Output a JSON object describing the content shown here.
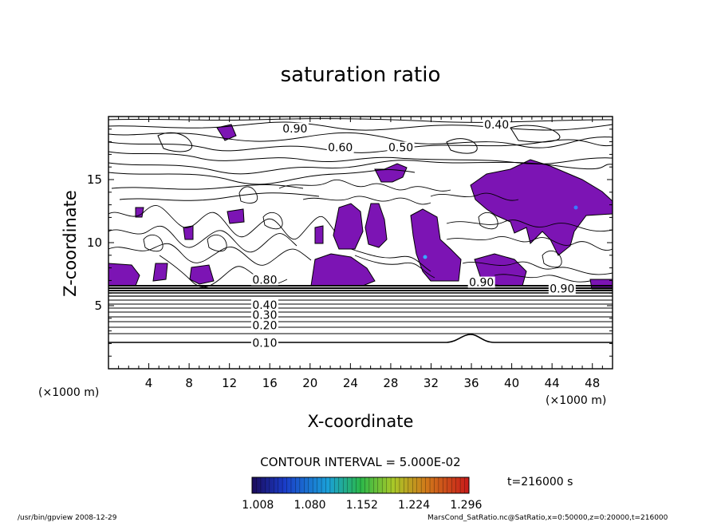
{
  "chart_data": {
    "type": "heatmap",
    "title": "saturation ratio",
    "xlabel": "X-coordinate",
    "ylabel": "Z-coordinate",
    "x_unit": "(×1000 m)",
    "z_unit": "(×1000 m)",
    "xlim": [
      0,
      50
    ],
    "ylim": [
      0,
      20
    ],
    "x_ticks": [
      "4",
      "8",
      "12",
      "16",
      "20",
      "24",
      "28",
      "32",
      "36",
      "40",
      "44",
      "48"
    ],
    "y_ticks": [
      "5",
      "10",
      "15"
    ],
    "contour_interval_text": "CONTOUR INTERVAL = 5.000E-02",
    "time_label": "t=216000 s",
    "colorbar": {
      "tick_labels": [
        "1.008",
        "1.080",
        "1.152",
        "1.224",
        "1.296"
      ],
      "range": [
        1.0,
        1.3
      ]
    },
    "contour_labels": [
      {
        "text": "0.10",
        "x": 15.5,
        "z": 2.0
      },
      {
        "text": "0.20",
        "x": 15.5,
        "z": 3.4
      },
      {
        "text": "0.30",
        "x": 15.5,
        "z": 4.2
      },
      {
        "text": "0.40",
        "x": 15.5,
        "z": 5.0
      },
      {
        "text": "0.40",
        "x": 38.5,
        "z": 19.3
      },
      {
        "text": "0.50",
        "x": 29.0,
        "z": 17.5
      },
      {
        "text": "0.60",
        "x": 23.0,
        "z": 17.5
      },
      {
        "text": "0.80",
        "x": 15.5,
        "z": 7.0
      },
      {
        "text": "0.90",
        "x": 45.0,
        "z": 6.3
      },
      {
        "text": "0.90",
        "x": 37.0,
        "z": 6.8
      },
      {
        "text": "0.90",
        "x": 18.5,
        "z": 19.0
      }
    ]
  },
  "footer": {
    "left": "/usr/bin/gpview   2008-12-29",
    "right": "MarsCond_SatRatio.nc@SatRatio,x=0:50000,z=0:20000,t=216000"
  }
}
